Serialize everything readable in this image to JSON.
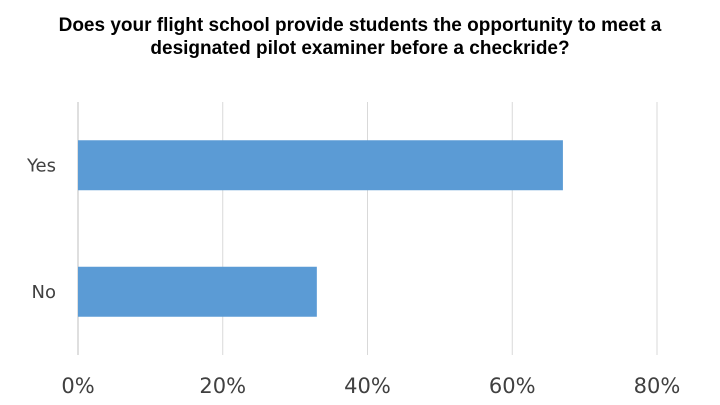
{
  "chart_data": {
    "type": "bar",
    "orientation": "horizontal",
    "title_lines": [
      "Does your flight school provide students the opportunity to meet a",
      "designated pilot examiner before a checkride?"
    ],
    "categories": [
      "Yes",
      "No"
    ],
    "values": [
      67,
      33
    ],
    "value_unit": "%",
    "xlim": [
      0,
      80
    ],
    "xticks": [
      0,
      20,
      40,
      60,
      80
    ],
    "xtick_labels": [
      "0%",
      "20%",
      "40%",
      "60%",
      "80%"
    ],
    "xlabel": "",
    "ylabel": "",
    "grid": "vertical",
    "legend": "none",
    "colors": {
      "bar": "#5b9bd5",
      "grid": "#d9d9d9",
      "axis": "#bfbfbf",
      "tick_text": "#404040"
    }
  }
}
